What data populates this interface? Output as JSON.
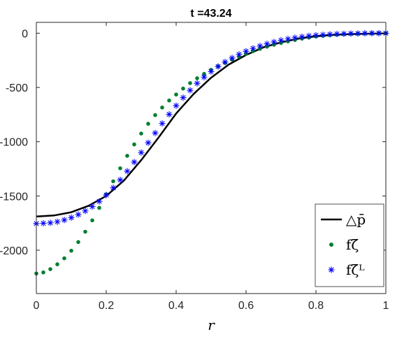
{
  "chart_data": {
    "type": "line",
    "title": "t =43.24",
    "xlabel": "r",
    "ylabel": "",
    "xlim": [
      0,
      1
    ],
    "ylim": [
      -2400,
      100
    ],
    "xticks": [
      0,
      0.2,
      0.4,
      0.6,
      0.8,
      1
    ],
    "xtick_labels": [
      "0",
      "0.2",
      "0.4",
      "0.6",
      "0.8",
      "1"
    ],
    "yticks": [
      0,
      -500,
      -1000,
      -1500,
      -2000
    ],
    "ytick_labels": [
      "0",
      "-500",
      "-1000",
      "-1500",
      "-2000"
    ],
    "grid": false,
    "legend_position": "bottom-right",
    "legend": [
      "△p̄",
      "fζ̄",
      "fζ̄ᴸ"
    ],
    "series": [
      {
        "name": "△p̄",
        "style": "line",
        "color": "#000000",
        "x": [
          0,
          0.05,
          0.1,
          0.15,
          0.2,
          0.25,
          0.3,
          0.35,
          0.4,
          0.45,
          0.5,
          0.55,
          0.6,
          0.65,
          0.7,
          0.75,
          0.8,
          0.85,
          0.9,
          0.95,
          1
        ],
        "y": [
          -1690,
          -1680,
          -1650,
          -1590,
          -1500,
          -1360,
          -1170,
          -960,
          -740,
          -560,
          -410,
          -290,
          -200,
          -130,
          -85,
          -50,
          -28,
          -15,
          -8,
          -4,
          -2
        ]
      },
      {
        "name": "fζ̄",
        "style": "dots",
        "color": "#007f2e",
        "x": [
          0,
          0.02,
          0.04,
          0.06,
          0.08,
          0.1,
          0.12,
          0.14,
          0.16,
          0.18,
          0.2,
          0.22,
          0.24,
          0.26,
          0.28,
          0.3,
          0.32,
          0.34,
          0.36,
          0.38,
          0.4,
          0.42,
          0.44,
          0.46,
          0.48,
          0.5,
          0.52,
          0.54,
          0.56,
          0.58,
          0.6,
          0.62,
          0.64,
          0.66,
          0.68,
          0.7,
          0.72,
          0.74,
          0.76,
          0.78,
          0.8,
          0.82,
          0.84,
          0.86,
          0.88,
          0.9,
          0.92,
          0.94,
          0.96,
          0.98,
          1
        ],
        "y": [
          -2215,
          -2205,
          -2175,
          -2130,
          -2075,
          -2005,
          -1925,
          -1830,
          -1725,
          -1610,
          -1485,
          -1365,
          -1245,
          -1130,
          -1025,
          -925,
          -835,
          -755,
          -685,
          -620,
          -565,
          -510,
          -460,
          -415,
          -375,
          -338,
          -305,
          -273,
          -243,
          -216,
          -190,
          -166,
          -144,
          -124,
          -106,
          -90,
          -75,
          -62,
          -50,
          -40,
          -31,
          -24,
          -18,
          -13,
          -9,
          -6,
          -4,
          -2,
          -1,
          0,
          0
        ]
      },
      {
        "name": "fζ̄ᴸ",
        "style": "stars",
        "color": "#0000ff",
        "x": [
          0,
          0.02,
          0.04,
          0.06,
          0.08,
          0.1,
          0.12,
          0.14,
          0.16,
          0.18,
          0.2,
          0.22,
          0.24,
          0.26,
          0.28,
          0.3,
          0.32,
          0.34,
          0.36,
          0.38,
          0.4,
          0.42,
          0.44,
          0.46,
          0.48,
          0.5,
          0.52,
          0.54,
          0.56,
          0.58,
          0.6,
          0.62,
          0.64,
          0.66,
          0.68,
          0.7,
          0.72,
          0.74,
          0.76,
          0.78,
          0.8,
          0.82,
          0.84,
          0.86,
          0.88,
          0.9,
          0.92,
          0.94,
          0.96,
          0.98,
          1
        ],
        "y": [
          -1755,
          -1752,
          -1748,
          -1738,
          -1722,
          -1700,
          -1672,
          -1638,
          -1598,
          -1550,
          -1492,
          -1425,
          -1352,
          -1272,
          -1188,
          -1100,
          -1010,
          -920,
          -832,
          -748,
          -668,
          -594,
          -526,
          -462,
          -405,
          -353,
          -307,
          -265,
          -228,
          -195,
          -166,
          -140,
          -118,
          -98,
          -81,
          -66,
          -53,
          -42,
          -33,
          -25,
          -19,
          -14,
          -10,
          -7,
          -5,
          -3,
          -2,
          -1,
          0,
          0,
          0
        ]
      }
    ]
  }
}
